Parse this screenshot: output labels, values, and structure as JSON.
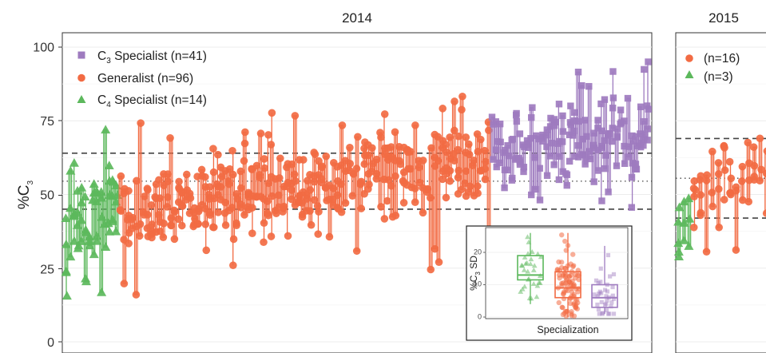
{
  "chart_data": [
    {
      "type": "scatter",
      "facet_title": "2014",
      "ylabel_main": "%C",
      "ylabel_sub": "3",
      "ylim": [
        0,
        100
      ],
      "yticks": [
        0,
        25,
        50,
        75,
        100
      ],
      "grid": true,
      "legend_position": "top-left",
      "reference_lines": [
        {
          "style": "dashed",
          "y": 64
        },
        {
          "style": "dotted",
          "y": 54.5
        },
        {
          "style": "dashed",
          "y": 45
        }
      ],
      "series": [
        {
          "name": "C3 Specialist (n=41)",
          "label_pre": "C",
          "label_sub": "3",
          "label_post": " Specialist (n=41)",
          "n": 41,
          "marker": "square",
          "color": "#9e7bbf",
          "means": [
            63,
            66,
            64,
            62,
            65,
            61,
            67,
            63,
            60,
            66,
            68,
            62,
            64,
            66,
            63,
            65,
            69,
            62,
            66,
            64,
            67,
            70,
            65,
            63,
            68,
            66,
            64,
            69,
            71,
            66,
            68,
            72,
            65,
            70,
            68,
            73,
            71,
            69,
            74,
            76,
            78
          ],
          "y_range": [
            41,
            95
          ]
        },
        {
          "name": "Generalist (n=96)",
          "label_pre": "",
          "label_sub": "",
          "label_post": "Generalist (n=96)",
          "n": 96,
          "marker": "circle",
          "color": "#f26b43",
          "mean_range": [
            44,
            62
          ],
          "y_range": [
            16,
            87
          ]
        },
        {
          "name": "C4 Specialist (n=14)",
          "label_pre": "C",
          "label_sub": "4",
          "label_post": " Specialist (n=14)",
          "n": 14,
          "marker": "triangle",
          "color": "#5cb85c",
          "means": [
            34,
            38,
            40,
            41,
            42,
            43,
            40,
            44,
            45,
            42,
            43,
            44,
            45,
            44
          ],
          "y_range": [
            6,
            72
          ]
        }
      ]
    },
    {
      "type": "scatter",
      "facet_title": "2015",
      "ylim": [
        0,
        100
      ],
      "grid": true,
      "legend_position": "top-left",
      "reference_lines": [
        {
          "style": "dashed",
          "y": 69
        },
        {
          "style": "dotted",
          "y": 55.5
        },
        {
          "style": "dashed",
          "y": 42
        }
      ],
      "series": [
        {
          "name": "(n=16)",
          "label": "(n=16)",
          "n": 16,
          "marker": "circle",
          "color": "#f26b43",
          "means": [
            48,
            50,
            52,
            54,
            55,
            56,
            56,
            57,
            57,
            58,
            58,
            59,
            59,
            60,
            61,
            62
          ],
          "y_range": [
            4,
            85
          ]
        },
        {
          "name": "(n=3)",
          "label": "(n=3)",
          "n": 3,
          "marker": "triangle",
          "color": "#5cb85c",
          "means": [
            36,
            40,
            38
          ],
          "y_range": [
            27,
            57
          ]
        }
      ]
    },
    {
      "type": "box",
      "inset": true,
      "xlabel": "Specialization",
      "ylabel_main": "%C",
      "ylabel_sub": "3",
      "ylabel_post": " SD",
      "yticks": [
        0,
        10,
        20
      ],
      "ylim": [
        -1,
        26
      ],
      "boxes": [
        {
          "color": "#5cb85c",
          "marker": "triangle",
          "q1": 11.5,
          "median": 13,
          "q3": 19,
          "whisker_low": 4,
          "whisker_high": 26
        },
        {
          "color": "#f26b43",
          "marker": "circle",
          "q1": 6,
          "median": 9,
          "q3": 14,
          "whisker_low": 0,
          "whisker_high": 26
        },
        {
          "color": "#9e7bbf",
          "marker": "square",
          "q1": 3,
          "median": 6,
          "q3": 10,
          "whisker_low": 1,
          "whisker_high": 22
        }
      ]
    }
  ]
}
